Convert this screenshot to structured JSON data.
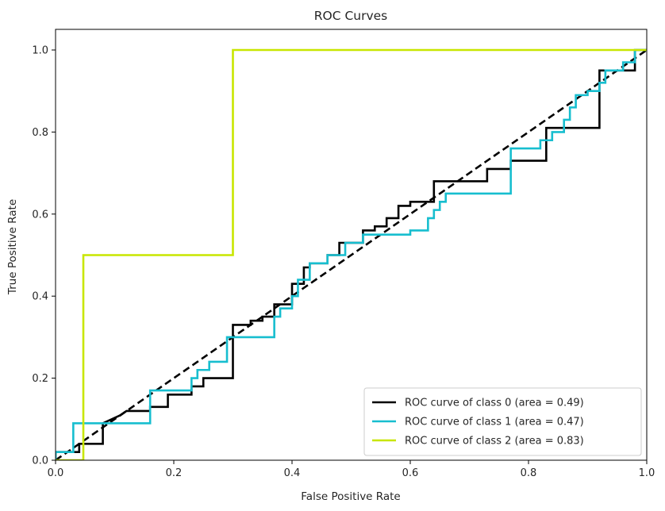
{
  "chart_data": {
    "type": "line",
    "title": "ROC Curves",
    "xlabel": "False Positive Rate",
    "ylabel": "True Positive Rate",
    "xlim": [
      0.0,
      1.0
    ],
    "ylim": [
      0.0,
      1.05
    ],
    "xticks": [
      "0.0",
      "0.2",
      "0.4",
      "0.6",
      "0.8",
      "1.0"
    ],
    "yticks": [
      "0.0",
      "0.2",
      "0.4",
      "0.6",
      "0.8",
      "1.0"
    ],
    "grid": false,
    "legend_position": "lower-right",
    "diagonal": {
      "x": [
        0,
        1
      ],
      "y": [
        0,
        1
      ],
      "color": "#000000",
      "style": "dashed"
    },
    "series": [
      {
        "name": "ROC curve of class 0 (area = 0.49)",
        "color": "#000000",
        "x": [
          0.0,
          0.0,
          0.04,
          0.04,
          0.08,
          0.08,
          0.11,
          0.12,
          0.14,
          0.16,
          0.16,
          0.19,
          0.19,
          0.23,
          0.23,
          0.25,
          0.25,
          0.26,
          0.3,
          0.3,
          0.33,
          0.33,
          0.35,
          0.35,
          0.37,
          0.37,
          0.4,
          0.4,
          0.42,
          0.42,
          0.43,
          0.43,
          0.46,
          0.46,
          0.48,
          0.48,
          0.51,
          0.51,
          0.52,
          0.52,
          0.54,
          0.54,
          0.56,
          0.56,
          0.58,
          0.58,
          0.6,
          0.6,
          0.64,
          0.64,
          0.67,
          0.67,
          0.73,
          0.73,
          0.77,
          0.77,
          0.83,
          0.83,
          0.92,
          0.92,
          0.98,
          0.98,
          1.0
        ],
        "y": [
          0.0,
          0.02,
          0.02,
          0.04,
          0.04,
          0.09,
          0.11,
          0.12,
          0.12,
          0.12,
          0.13,
          0.13,
          0.16,
          0.16,
          0.18,
          0.18,
          0.2,
          0.2,
          0.2,
          0.33,
          0.33,
          0.34,
          0.34,
          0.35,
          0.35,
          0.38,
          0.38,
          0.43,
          0.43,
          0.47,
          0.47,
          0.48,
          0.48,
          0.5,
          0.5,
          0.53,
          0.53,
          0.53,
          0.53,
          0.56,
          0.56,
          0.57,
          0.57,
          0.59,
          0.59,
          0.62,
          0.62,
          0.63,
          0.63,
          0.68,
          0.68,
          0.68,
          0.68,
          0.71,
          0.71,
          0.73,
          0.73,
          0.81,
          0.81,
          0.95,
          0.95,
          1.0,
          1.0
        ]
      },
      {
        "name": "ROC curve of class 1 (area = 0.47)",
        "color": "#17becf",
        "x": [
          0.0,
          0.0,
          0.03,
          0.03,
          0.05,
          0.05,
          0.16,
          0.16,
          0.23,
          0.23,
          0.24,
          0.24,
          0.26,
          0.26,
          0.29,
          0.29,
          0.37,
          0.37,
          0.38,
          0.38,
          0.4,
          0.4,
          0.41,
          0.41,
          0.43,
          0.43,
          0.46,
          0.46,
          0.49,
          0.49,
          0.52,
          0.52,
          0.6,
          0.6,
          0.63,
          0.63,
          0.64,
          0.64,
          0.65,
          0.65,
          0.66,
          0.66,
          0.77,
          0.77,
          0.82,
          0.82,
          0.84,
          0.84,
          0.86,
          0.86,
          0.87,
          0.87,
          0.88,
          0.88,
          0.9,
          0.9,
          0.92,
          0.92,
          0.93,
          0.93,
          0.96,
          0.96,
          0.98,
          0.98,
          1.0
        ],
        "y": [
          0.0,
          0.02,
          0.02,
          0.09,
          0.09,
          0.09,
          0.09,
          0.17,
          0.17,
          0.2,
          0.2,
          0.22,
          0.22,
          0.24,
          0.24,
          0.3,
          0.3,
          0.35,
          0.35,
          0.37,
          0.37,
          0.4,
          0.4,
          0.44,
          0.44,
          0.48,
          0.48,
          0.5,
          0.5,
          0.53,
          0.53,
          0.55,
          0.55,
          0.56,
          0.56,
          0.59,
          0.59,
          0.61,
          0.61,
          0.63,
          0.63,
          0.65,
          0.65,
          0.76,
          0.76,
          0.78,
          0.78,
          0.8,
          0.8,
          0.83,
          0.83,
          0.86,
          0.86,
          0.89,
          0.89,
          0.9,
          0.9,
          0.92,
          0.92,
          0.95,
          0.95,
          0.97,
          0.97,
          1.0,
          1.0
        ]
      },
      {
        "name": "ROC curve of class 2 (area = 0.83)",
        "color": "#c8e600",
        "x": [
          0.0,
          0.047,
          0.047,
          0.3,
          0.3,
          1.0
        ],
        "y": [
          0.0,
          0.0,
          0.5,
          0.5,
          1.0,
          1.0
        ]
      }
    ]
  }
}
